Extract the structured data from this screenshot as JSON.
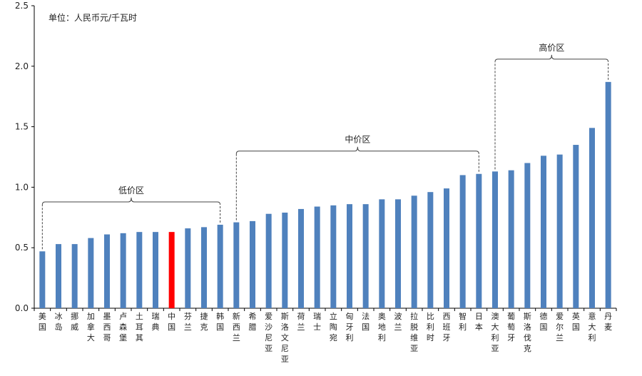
{
  "chart_data": {
    "type": "bar",
    "unit_label": "单位：人民币元/千瓦时",
    "ylim": [
      0,
      2.5
    ],
    "yticks": [
      "0.0",
      "0.5",
      "1.0",
      "1.5",
      "2.0",
      "2.5"
    ],
    "grid": false,
    "categories": [
      "美国",
      "冰岛",
      "挪威",
      "加拿大",
      "墨西哥",
      "卢森堡",
      "土耳其",
      "瑞典",
      "中国",
      "芬兰",
      "捷克",
      "韩国",
      "新西兰",
      "希腊",
      "爱沙尼亚",
      "斯洛文尼亚",
      "荷兰",
      "瑞士",
      "立陶宛",
      "匈牙利",
      "法国",
      "奥地利",
      "波兰",
      "拉脱维亚",
      "比利时",
      "西班牙",
      "智利",
      "日本",
      "澳大利亚",
      "葡萄牙",
      "斯洛伐克",
      "德国",
      "爱尔兰",
      "英国",
      "意大利",
      "丹麦"
    ],
    "values": [
      0.47,
      0.53,
      0.53,
      0.58,
      0.61,
      0.62,
      0.63,
      0.63,
      0.63,
      0.66,
      0.67,
      0.69,
      0.71,
      0.72,
      0.78,
      0.79,
      0.82,
      0.84,
      0.85,
      0.86,
      0.86,
      0.9,
      0.9,
      0.93,
      0.96,
      0.99,
      1.1,
      1.11,
      1.13,
      1.14,
      1.2,
      1.26,
      1.27,
      1.35,
      1.49,
      1.87
    ],
    "highlight_category": "中国",
    "colors": {
      "bar": "#4f81bd",
      "highlight": "#ff0000",
      "axis": "#000000",
      "bracket": "#444444"
    },
    "annotations": [
      {
        "label": "低价区",
        "from": 0,
        "to": 11
      },
      {
        "label": "中价区",
        "from": 12,
        "to": 27
      },
      {
        "label": "高价区",
        "from": 28,
        "to": 35
      }
    ]
  }
}
